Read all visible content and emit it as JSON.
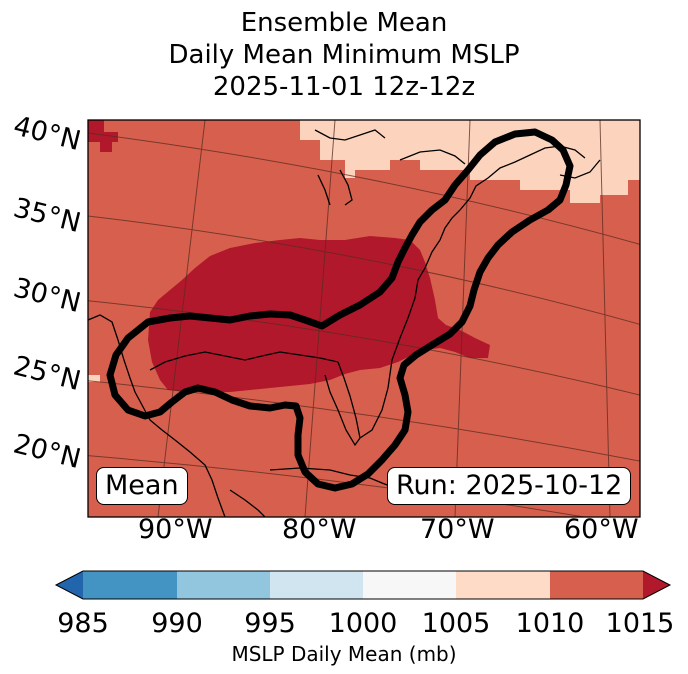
{
  "title": {
    "line1": "Ensemble Mean",
    "line2": "Daily Mean Minimum MSLP",
    "line3": "2025-11-01 12z-12z"
  },
  "map": {
    "lat_labels": [
      "40°N",
      "35°N",
      "30°N",
      "25°N",
      "20°N"
    ],
    "lon_labels": [
      "90°W",
      "80°W",
      "70°W",
      "60°W"
    ],
    "left_badge": "Mean",
    "right_badge": "Run: 2025-10-12",
    "colors": {
      "lt1010": "#fcd4be",
      "lt1015": "#d6604d",
      "ge1015": "#b2182b",
      "contour": "#000000"
    }
  },
  "colorbar": {
    "ticks": [
      "985",
      "990",
      "995",
      "1000",
      "1005",
      "1010",
      "1015"
    ],
    "label": "MSLP Daily Mean (mb)",
    "colors": [
      "#2166ac",
      "#4393c3",
      "#92c5de",
      "#d1e5f0",
      "#f7f7f7",
      "#fddbc7",
      "#d6604d",
      "#b2182b"
    ]
  }
}
